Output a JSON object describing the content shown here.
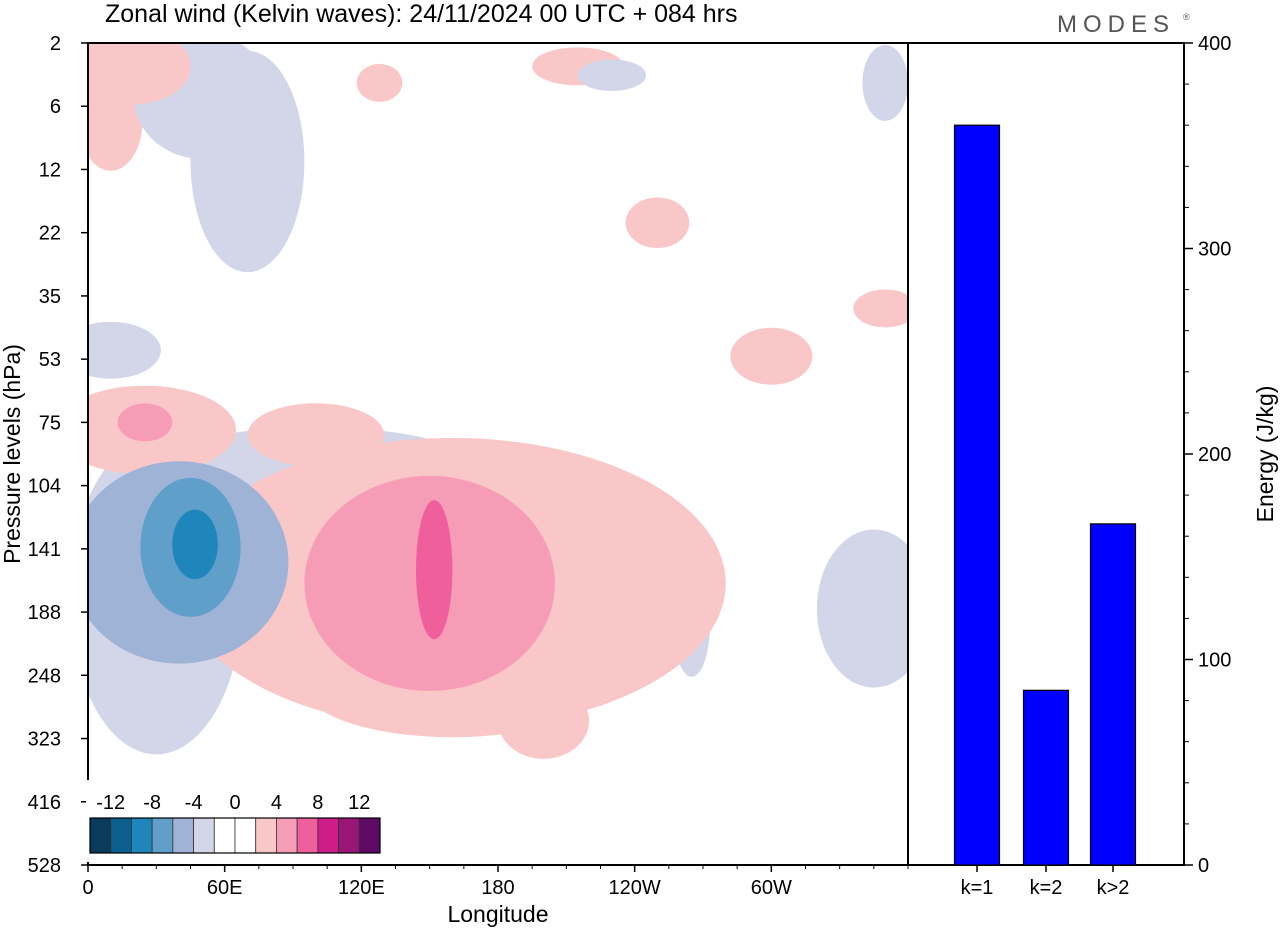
{
  "title": "Zonal wind (Kelvin waves):  24/11/2024  00 UTC  + 084 hrs",
  "logo": "MODES",
  "chart_data": [
    {
      "type": "heatmap",
      "xlabel": "Longitude",
      "ylabel": "Pressure levels (hPa)",
      "x_ticks": [
        "0",
        "60E",
        "120E",
        "180",
        "120W",
        "60W"
      ],
      "y_ticks": [
        "2",
        "6",
        "12",
        "22",
        "35",
        "53",
        "75",
        "104",
        "141",
        "188",
        "248",
        "323",
        "416",
        "528"
      ],
      "colorbar": {
        "labels": [
          "-12",
          "-8",
          "-4",
          "0",
          "4",
          "8",
          "12"
        ],
        "colors": [
          "#0a3a5c",
          "#0b5f8e",
          "#1e86bb",
          "#5f9fc9",
          "#9fb3d6",
          "#d3d6e8",
          "#ffffff",
          "#ffffff",
          "#f9c7c8",
          "#f79cb6",
          "#ef5f9c",
          "#cc1e86",
          "#991679",
          "#5c0a63"
        ]
      },
      "regions": [
        {
          "name": "westerly-jet-upper-trop",
          "lon": 160,
          "lev": 165,
          "rx": 120,
          "ry": 4.6,
          "level": 1
        },
        {
          "name": "westerly-jet-core",
          "lon": 150,
          "lev": 165,
          "rx": 55,
          "ry": 3.4,
          "level": 2
        },
        {
          "name": "westerly-jet-max",
          "lon": 152,
          "lev": 155,
          "rx": 8,
          "ry": 2.2,
          "level": 3
        },
        {
          "name": "easterly-anomaly-60E",
          "lon": 40,
          "lev": 150,
          "rx": 48,
          "ry": 3.2,
          "level": -2
        },
        {
          "name": "easterly-anomaly-core",
          "lon": 45,
          "lev": 140,
          "rx": 22,
          "ry": 2.2,
          "level": -3
        },
        {
          "name": "easterly-anomaly-max",
          "lon": 47,
          "lev": 138,
          "rx": 10,
          "ry": 1.1,
          "level": -4
        },
        {
          "name": "westerly-75hPa",
          "lon": 25,
          "lev": 78,
          "rx": 40,
          "ry": 1.4,
          "level": 1
        },
        {
          "name": "westerly-75hPa-core",
          "lon": 25,
          "lev": 75,
          "rx": 12,
          "ry": 0.6,
          "level": 2
        },
        {
          "name": "westerly-upper",
          "lon": 20,
          "lev": 3,
          "rx": 25,
          "ry": 1.2,
          "level": 1
        },
        {
          "name": "easterly-east-pacific",
          "lon": 345,
          "lev": 185,
          "rx": 25,
          "ry": 2.5,
          "level": -1
        }
      ]
    },
    {
      "type": "bar",
      "categories": [
        "k=1",
        "k=2",
        "k>2"
      ],
      "values": [
        360,
        85,
        166
      ],
      "ylabel": "Energy (J/kg)",
      "ylim": [
        0,
        400
      ],
      "y_ticks": [
        0,
        100,
        200,
        300,
        400
      ],
      "bar_color": "#0000ff"
    }
  ]
}
